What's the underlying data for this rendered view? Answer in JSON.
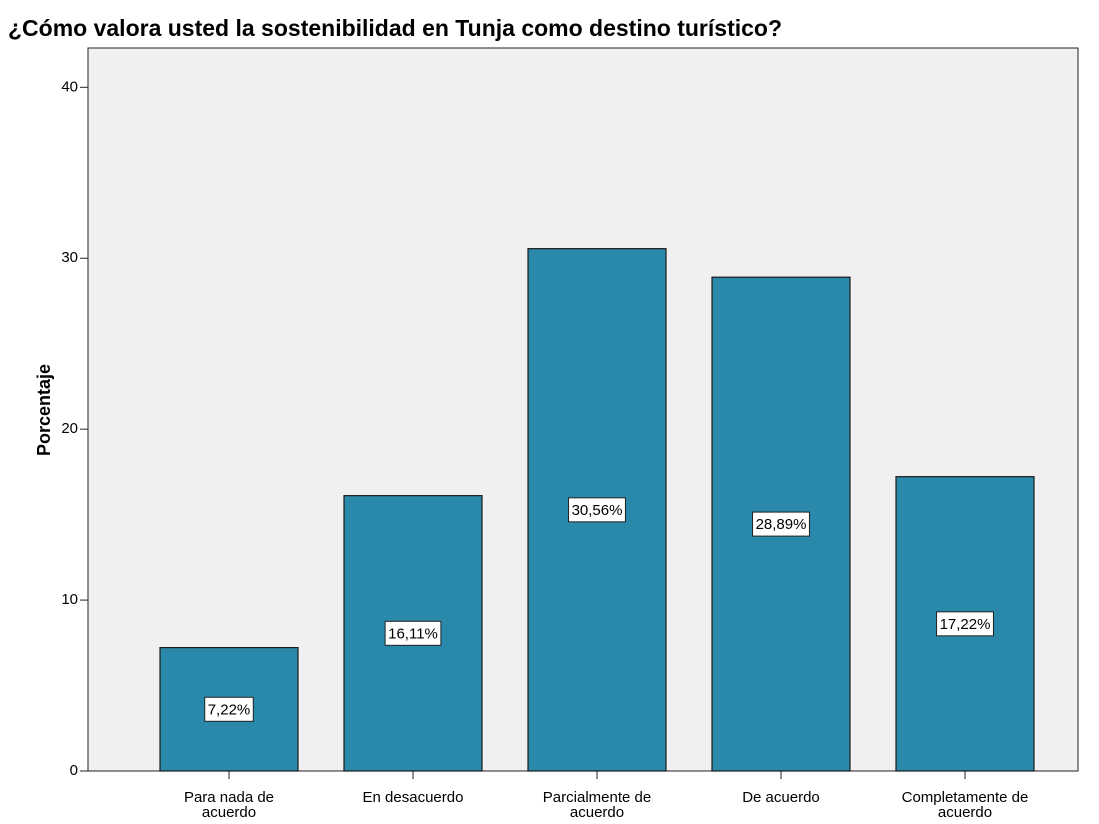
{
  "chart_data": {
    "type": "bar",
    "title": "¿Cómo valora usted la sostenibilidad en Tunja como destino turístico?",
    "y_label": "Porcentaje",
    "categories": [
      "Para nada de acuerdo",
      "En desacuerdo",
      "Parcialmente de acuerdo",
      "De acuerdo",
      "Completamente de acuerdo"
    ],
    "values": [
      7.22,
      16.11,
      30.56,
      28.89,
      17.22
    ],
    "value_labels": [
      "7,22%",
      "16,11%",
      "30,56%",
      "28,89%",
      "17,22%"
    ],
    "color": "#2a89ab",
    "ylim": [
      0,
      42.3
    ],
    "yticks": [
      0,
      10,
      20,
      30,
      40
    ]
  }
}
